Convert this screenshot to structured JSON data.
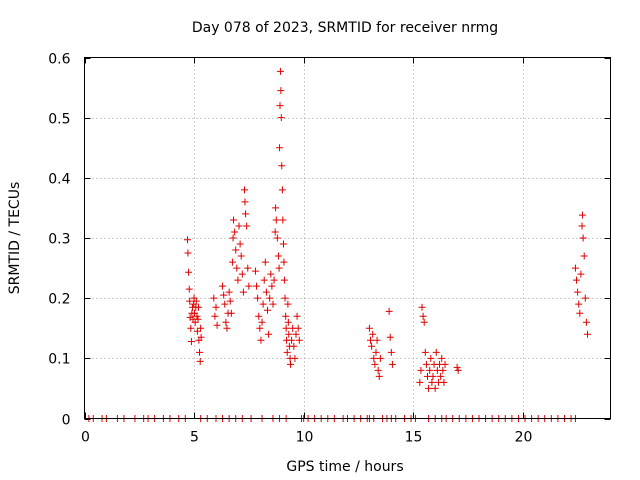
{
  "chart_data": {
    "type": "scatter",
    "title": "Day 078 of 2023, SRMTID for receiver nrmg",
    "xlabel": "GPS time / hours",
    "ylabel": "SRMTID / TECUs",
    "xlim": [
      0,
      24
    ],
    "ylim": [
      0,
      0.6
    ],
    "grid": true,
    "x_ticks": [
      0,
      5,
      10,
      15,
      20
    ],
    "x_tick_labels": [
      "0",
      "5",
      "10",
      "15",
      "20"
    ],
    "y_ticks": [
      0,
      0.1,
      0.2,
      0.3,
      0.4,
      0.5,
      0.6
    ],
    "y_tick_labels": [
      "0",
      "0.1",
      "0.2",
      "0.3",
      "0.4",
      "0.5",
      "0.6"
    ],
    "marker": "+",
    "marker_color": "#e00000",
    "series": [
      {
        "name": "SRMTID",
        "points": [
          [
            0.2,
            0
          ],
          [
            0.4,
            0
          ],
          [
            0.8,
            0
          ],
          [
            1.0,
            0
          ],
          [
            1.5,
            0
          ],
          [
            1.8,
            0
          ],
          [
            2.3,
            0
          ],
          [
            2.7,
            0
          ],
          [
            2.9,
            0
          ],
          [
            3.2,
            0
          ],
          [
            3.6,
            0
          ],
          [
            3.9,
            0
          ],
          [
            4.3,
            0
          ],
          [
            4.6,
            0
          ],
          [
            5.3,
            0
          ],
          [
            5.6,
            0
          ],
          [
            6.0,
            0
          ],
          [
            6.3,
            0
          ],
          [
            6.6,
            0
          ],
          [
            6.9,
            0
          ],
          [
            7.2,
            0
          ],
          [
            7.6,
            0
          ],
          [
            8.1,
            0
          ],
          [
            8.6,
            0
          ],
          [
            8.9,
            0
          ],
          [
            9.2,
            0
          ],
          [
            9.9,
            0
          ],
          [
            10.0,
            0
          ],
          [
            10.2,
            0
          ],
          [
            10.5,
            0
          ],
          [
            10.8,
            0
          ],
          [
            11.1,
            0
          ],
          [
            11.4,
            0
          ],
          [
            11.8,
            0
          ],
          [
            12.0,
            0
          ],
          [
            12.3,
            0
          ],
          [
            12.6,
            0
          ],
          [
            12.9,
            0
          ],
          [
            13.0,
            0
          ],
          [
            13.2,
            0
          ],
          [
            13.6,
            0
          ],
          [
            13.8,
            0
          ],
          [
            14.0,
            0
          ],
          [
            14.2,
            0
          ],
          [
            14.6,
            0
          ],
          [
            14.9,
            0
          ],
          [
            15.1,
            0
          ],
          [
            15.7,
            0
          ],
          [
            16.0,
            0
          ],
          [
            16.3,
            0
          ],
          [
            16.5,
            0
          ],
          [
            16.8,
            0
          ],
          [
            17.1,
            0
          ],
          [
            17.4,
            0
          ],
          [
            17.7,
            0
          ],
          [
            18.0,
            0
          ],
          [
            18.3,
            0
          ],
          [
            18.6,
            0
          ],
          [
            18.9,
            0
          ],
          [
            19.2,
            0
          ],
          [
            19.5,
            0
          ],
          [
            19.8,
            0
          ],
          [
            20.1,
            0
          ],
          [
            20.4,
            0
          ],
          [
            20.7,
            0
          ],
          [
            21.0,
            0
          ],
          [
            21.3,
            0
          ],
          [
            21.6,
            0
          ],
          [
            21.9,
            0
          ],
          [
            22.2,
            0
          ],
          [
            22.4,
            0
          ],
          [
            4.7,
            0.297
          ],
          [
            4.72,
            0.275
          ],
          [
            4.75,
            0.243
          ],
          [
            4.78,
            0.215
          ],
          [
            4.8,
            0.195
          ],
          [
            4.82,
            0.168
          ],
          [
            4.85,
            0.15
          ],
          [
            4.88,
            0.128
          ],
          [
            4.9,
            0.175
          ],
          [
            4.93,
            0.185
          ],
          [
            4.95,
            0.165
          ],
          [
            4.98,
            0.19
          ],
          [
            5.0,
            0.2
          ],
          [
            5.02,
            0.175
          ],
          [
            5.05,
            0.16
          ],
          [
            5.08,
            0.185
          ],
          [
            5.1,
            0.195
          ],
          [
            5.13,
            0.17
          ],
          [
            5.15,
            0.145
          ],
          [
            5.18,
            0.165
          ],
          [
            5.2,
            0.185
          ],
          [
            5.22,
            0.13
          ],
          [
            5.25,
            0.11
          ],
          [
            5.28,
            0.095
          ],
          [
            5.3,
            0.15
          ],
          [
            5.32,
            0.135
          ],
          [
            5.9,
            0.2
          ],
          [
            5.95,
            0.17
          ],
          [
            6.0,
            0.185
          ],
          [
            6.05,
            0.155
          ],
          [
            6.3,
            0.22
          ],
          [
            6.35,
            0.205
          ],
          [
            6.4,
            0.19
          ],
          [
            6.45,
            0.16
          ],
          [
            6.5,
            0.15
          ],
          [
            6.55,
            0.175
          ],
          [
            6.6,
            0.21
          ],
          [
            6.65,
            0.195
          ],
          [
            6.7,
            0.175
          ],
          [
            6.75,
            0.26
          ],
          [
            6.78,
            0.3
          ],
          [
            6.8,
            0.33
          ],
          [
            6.85,
            0.31
          ],
          [
            6.9,
            0.28
          ],
          [
            6.95,
            0.25
          ],
          [
            7.0,
            0.23
          ],
          [
            7.05,
            0.32
          ],
          [
            7.1,
            0.29
          ],
          [
            7.15,
            0.27
          ],
          [
            7.2,
            0.24
          ],
          [
            7.25,
            0.21
          ],
          [
            7.3,
            0.38
          ],
          [
            7.32,
            0.36
          ],
          [
            7.35,
            0.34
          ],
          [
            7.4,
            0.32
          ],
          [
            7.45,
            0.25
          ],
          [
            7.5,
            0.22
          ],
          [
            7.8,
            0.245
          ],
          [
            7.85,
            0.22
          ],
          [
            7.9,
            0.2
          ],
          [
            7.95,
            0.17
          ],
          [
            8.0,
            0.15
          ],
          [
            8.05,
            0.13
          ],
          [
            8.1,
            0.16
          ],
          [
            8.15,
            0.19
          ],
          [
            8.2,
            0.23
          ],
          [
            8.25,
            0.26
          ],
          [
            8.3,
            0.21
          ],
          [
            8.35,
            0.18
          ],
          [
            8.4,
            0.14
          ],
          [
            8.45,
            0.2
          ],
          [
            8.5,
            0.24
          ],
          [
            8.55,
            0.22
          ],
          [
            8.6,
            0.19
          ],
          [
            8.65,
            0.23
          ],
          [
            8.7,
            0.31
          ],
          [
            8.72,
            0.35
          ],
          [
            8.75,
            0.33
          ],
          [
            8.8,
            0.3
          ],
          [
            8.85,
            0.27
          ],
          [
            8.88,
            0.25
          ],
          [
            8.9,
            0.45
          ],
          [
            8.92,
            0.52
          ],
          [
            8.94,
            0.577
          ],
          [
            8.96,
            0.545
          ],
          [
            8.98,
            0.5
          ],
          [
            9.0,
            0.42
          ],
          [
            9.03,
            0.38
          ],
          [
            9.05,
            0.33
          ],
          [
            9.08,
            0.29
          ],
          [
            9.1,
            0.26
          ],
          [
            9.12,
            0.23
          ],
          [
            9.15,
            0.2
          ],
          [
            9.18,
            0.17
          ],
          [
            9.2,
            0.15
          ],
          [
            9.22,
            0.13
          ],
          [
            9.25,
            0.11
          ],
          [
            9.28,
            0.19
          ],
          [
            9.3,
            0.16
          ],
          [
            9.32,
            0.14
          ],
          [
            9.35,
            0.12
          ],
          [
            9.38,
            0.1
          ],
          [
            9.4,
            0.09
          ],
          [
            9.45,
            0.13
          ],
          [
            9.5,
            0.15
          ],
          [
            9.55,
            0.12
          ],
          [
            9.6,
            0.1
          ],
          [
            9.65,
            0.14
          ],
          [
            9.7,
            0.17
          ],
          [
            9.75,
            0.15
          ],
          [
            9.8,
            0.13
          ],
          [
            13.0,
            0.15
          ],
          [
            13.05,
            0.13
          ],
          [
            13.1,
            0.12
          ],
          [
            13.15,
            0.14
          ],
          [
            13.2,
            0.1
          ],
          [
            13.25,
            0.09
          ],
          [
            13.3,
            0.11
          ],
          [
            13.35,
            0.13
          ],
          [
            13.4,
            0.08
          ],
          [
            13.45,
            0.07
          ],
          [
            13.5,
            0.1
          ],
          [
            13.9,
            0.178
          ],
          [
            13.95,
            0.135
          ],
          [
            14.0,
            0.11
          ],
          [
            14.05,
            0.09
          ],
          [
            15.3,
            0.06
          ],
          [
            15.35,
            0.08
          ],
          [
            15.4,
            0.185
          ],
          [
            15.45,
            0.17
          ],
          [
            15.5,
            0.16
          ],
          [
            15.55,
            0.11
          ],
          [
            15.6,
            0.09
          ],
          [
            15.65,
            0.07
          ],
          [
            15.7,
            0.05
          ],
          [
            15.75,
            0.08
          ],
          [
            15.8,
            0.1
          ],
          [
            15.85,
            0.06
          ],
          [
            15.9,
            0.07
          ],
          [
            15.95,
            0.09
          ],
          [
            16.0,
            0.05
          ],
          [
            16.05,
            0.11
          ],
          [
            16.1,
            0.08
          ],
          [
            16.15,
            0.06
          ],
          [
            16.2,
            0.09
          ],
          [
            16.25,
            0.07
          ],
          [
            16.3,
            0.1
          ],
          [
            16.35,
            0.08
          ],
          [
            16.4,
            0.06
          ],
          [
            16.45,
            0.09
          ],
          [
            17.0,
            0.085
          ],
          [
            17.05,
            0.08
          ],
          [
            22.4,
            0.25
          ],
          [
            22.45,
            0.23
          ],
          [
            22.5,
            0.21
          ],
          [
            22.55,
            0.19
          ],
          [
            22.6,
            0.175
          ],
          [
            22.65,
            0.24
          ],
          [
            22.7,
            0.32
          ],
          [
            22.72,
            0.338
          ],
          [
            22.75,
            0.3
          ],
          [
            22.8,
            0.27
          ],
          [
            22.85,
            0.2
          ],
          [
            22.9,
            0.16
          ],
          [
            22.95,
            0.14
          ]
        ]
      }
    ]
  }
}
